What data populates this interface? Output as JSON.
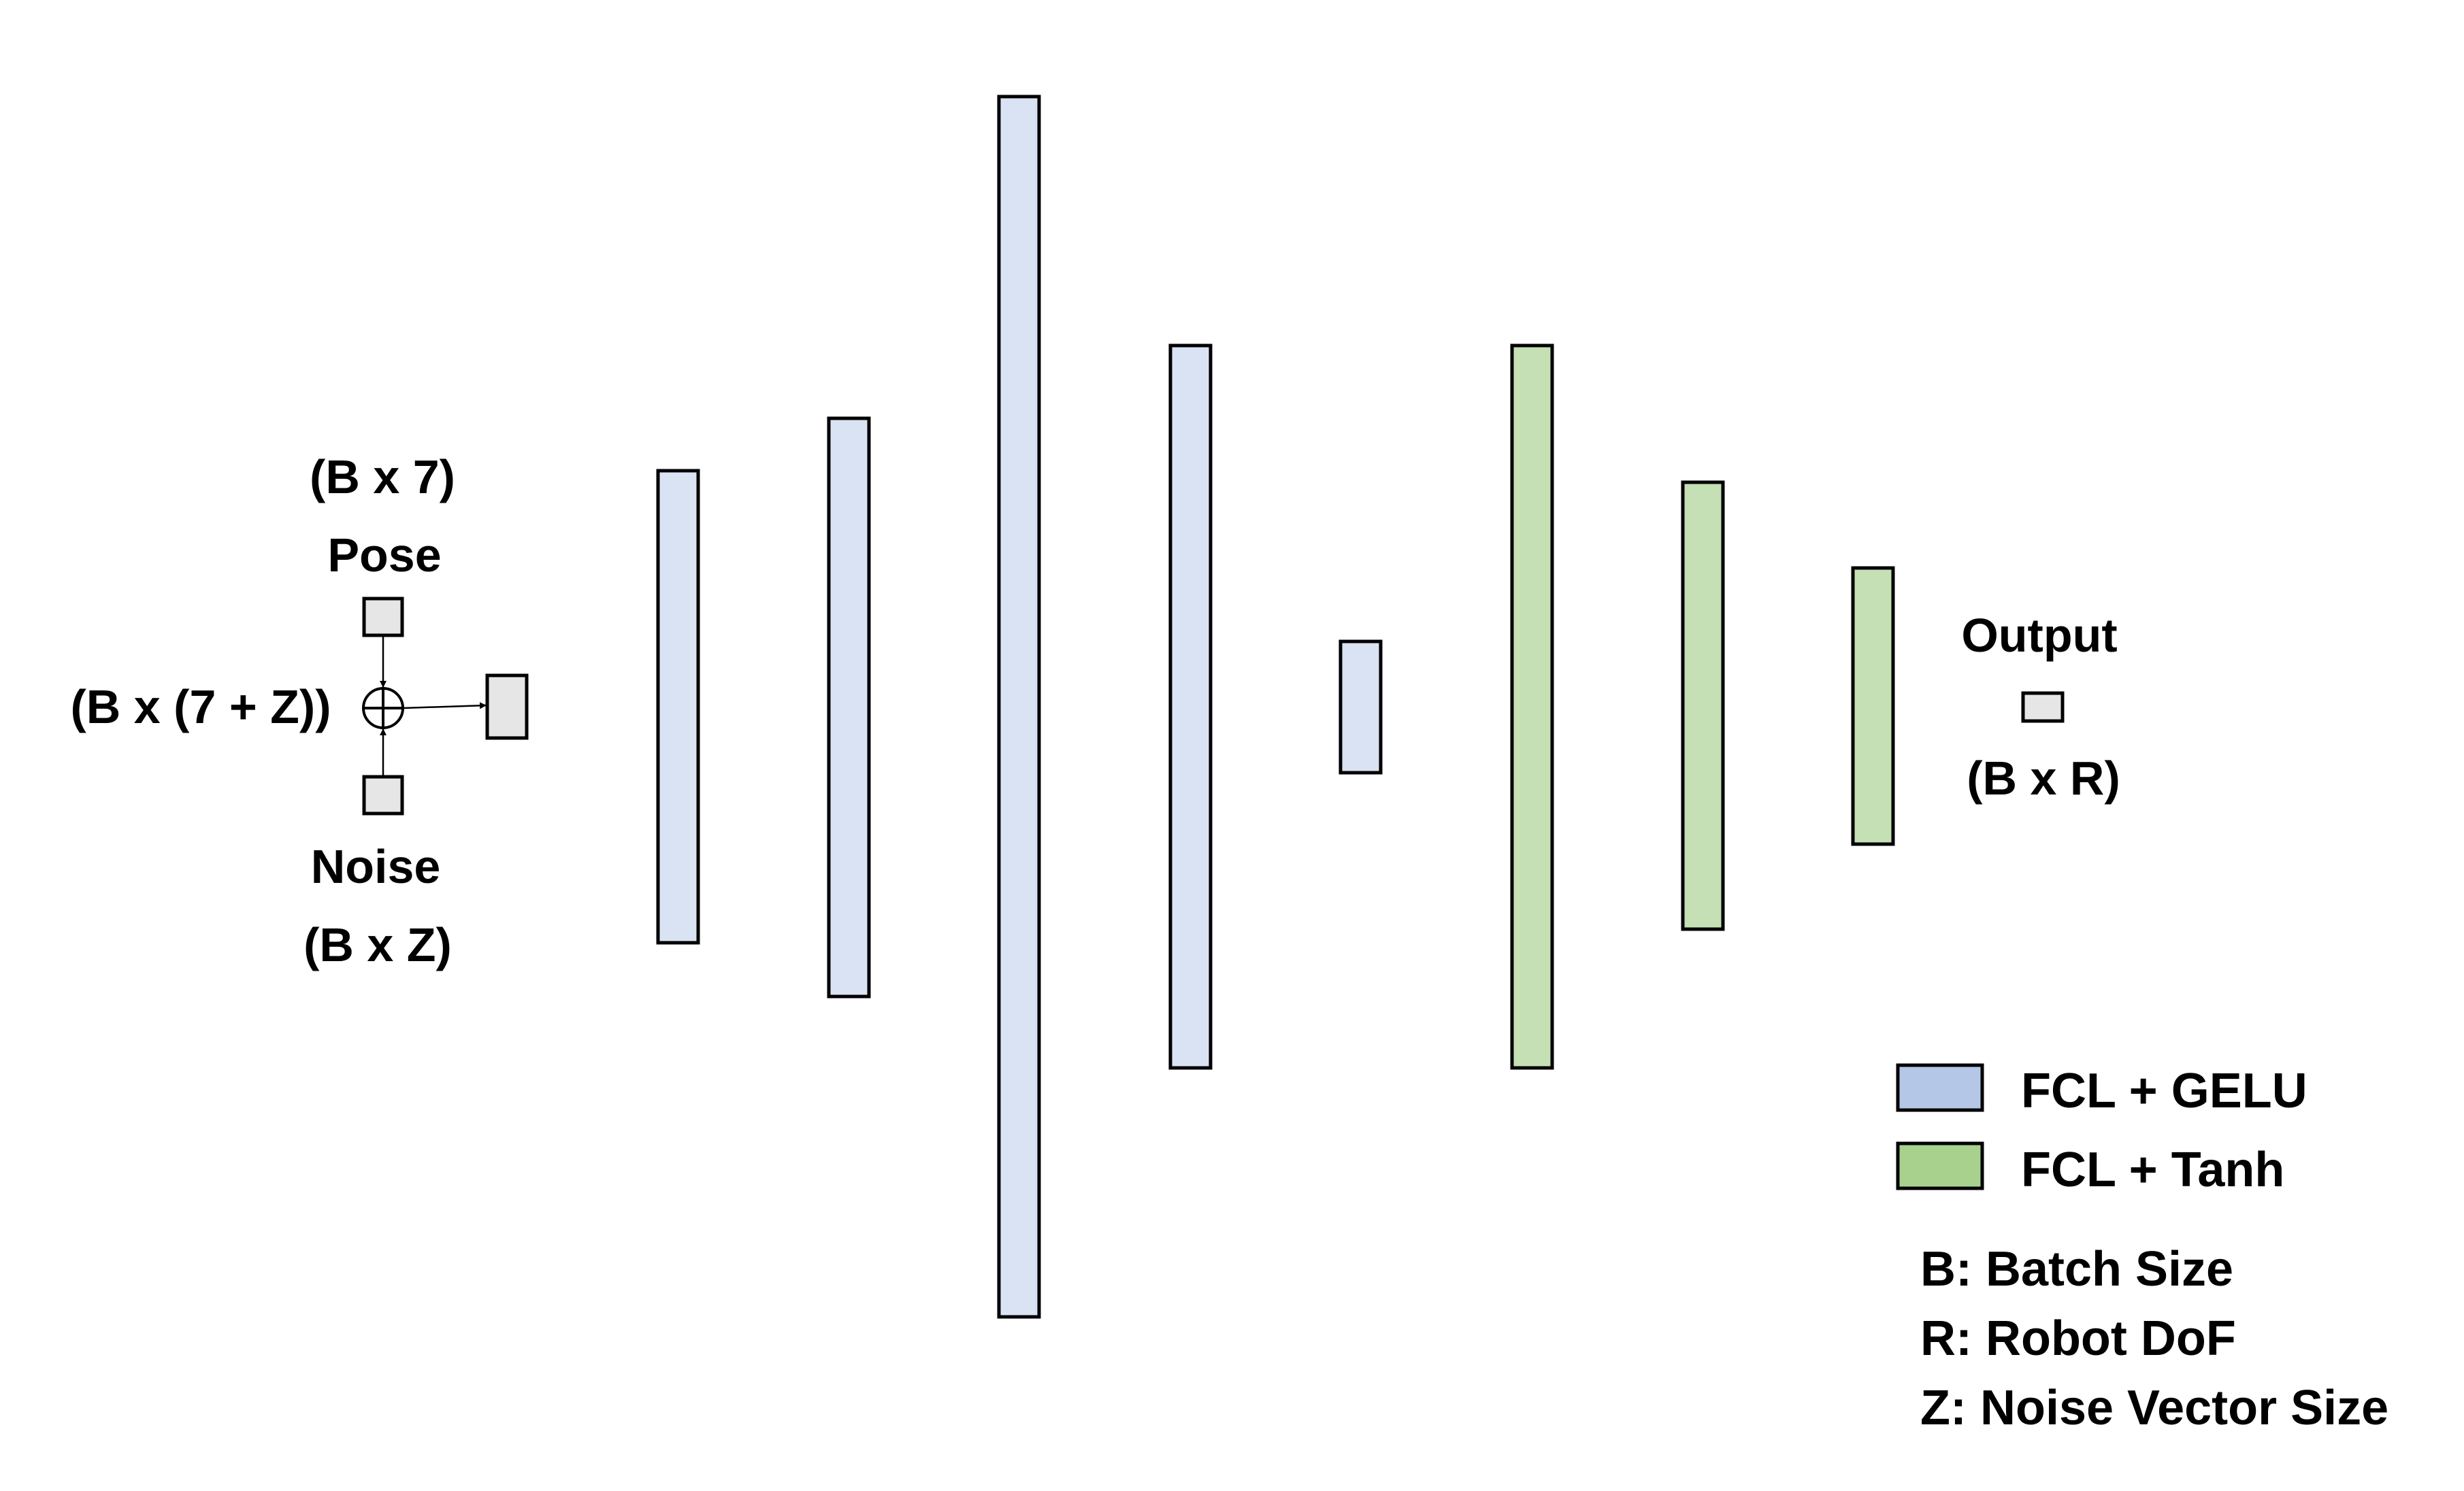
{
  "diagram": {
    "inputs": {
      "pose_shape": "(B x 7)",
      "pose_label": "Pose",
      "noise_label": "Noise",
      "noise_shape": "(B x Z)",
      "concat_shape": "(B x (7 + Z))",
      "concat_symbol": "⊕"
    },
    "output": {
      "label": "Output",
      "shape": "(B x R)"
    },
    "layers": [
      {
        "type": "FCL + GELU"
      },
      {
        "type": "FCL + GELU"
      },
      {
        "type": "FCL + GELU"
      },
      {
        "type": "FCL + GELU"
      },
      {
        "type": "FCL + GELU"
      },
      {
        "type": "FCL + Tanh"
      },
      {
        "type": "FCL + Tanh"
      },
      {
        "type": "FCL + Tanh"
      }
    ],
    "legend": {
      "items": [
        {
          "label": "FCL + GELU",
          "swatch_color": "#b4c7e7"
        },
        {
          "label": "FCL + Tanh",
          "swatch_color": "#a9d18e"
        }
      ],
      "definitions": [
        "B: Batch Size",
        "R: Robot DoF",
        "Z: Noise Vector Size"
      ]
    },
    "colors": {
      "gelu_fill": "#dae3f3",
      "tanh_fill": "#c5e0b4",
      "io_fill": "#e6e6e6"
    }
  }
}
